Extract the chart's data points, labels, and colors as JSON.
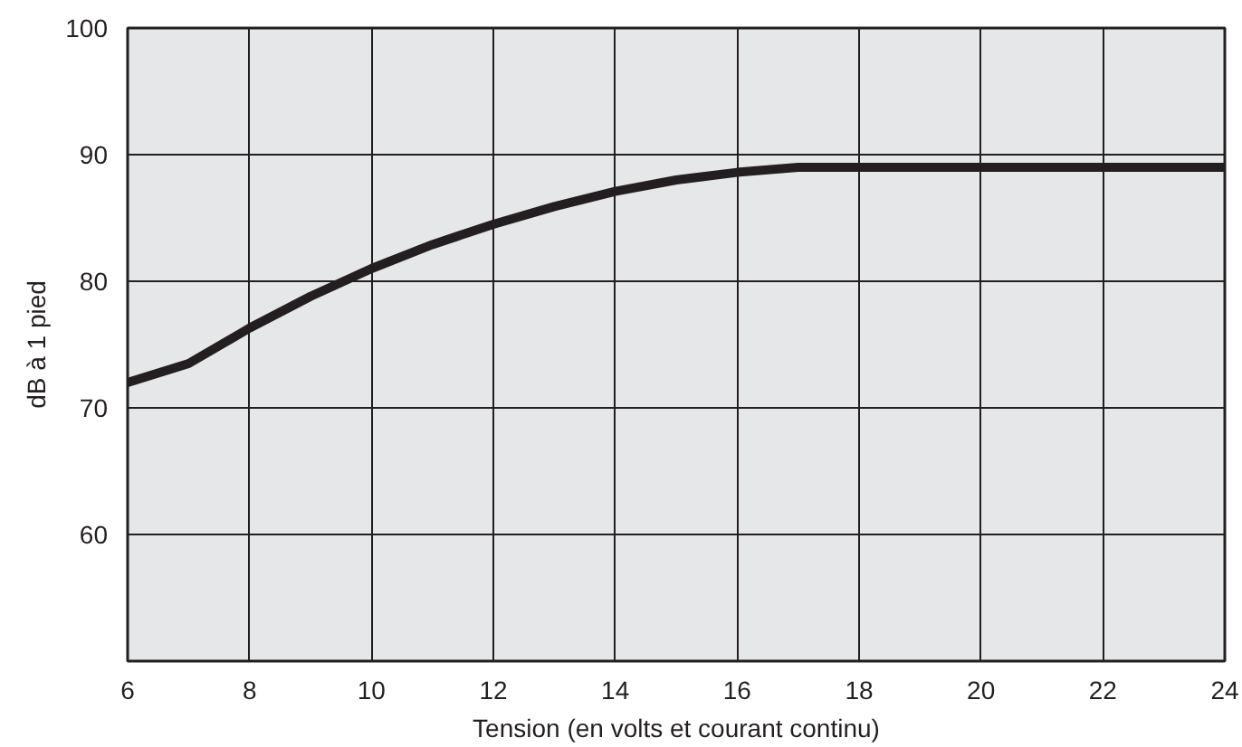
{
  "chart_data": {
    "type": "line",
    "xlabel": "Tension (en volts et courant continu)",
    "ylabel": "dB à 1 pied",
    "x": [
      6,
      7,
      8,
      9,
      10,
      11,
      12,
      13,
      14,
      15,
      16,
      17,
      18,
      20,
      22,
      24
    ],
    "series": [
      {
        "color": "#231f20",
        "values": [
          72,
          73.5,
          76.3,
          78.8,
          81,
          82.9,
          84.5,
          85.9,
          87.1,
          88,
          88.6,
          89,
          89,
          89,
          89,
          89
        ]
      }
    ],
    "xlim": [
      6,
      24
    ],
    "xticks": [
      6,
      8,
      10,
      12,
      14,
      16,
      18,
      20,
      22,
      24
    ],
    "ylim": [
      50,
      100
    ],
    "yticks": [
      60,
      70,
      80,
      90,
      100
    ],
    "grid": true,
    "line_style": "solid"
  }
}
